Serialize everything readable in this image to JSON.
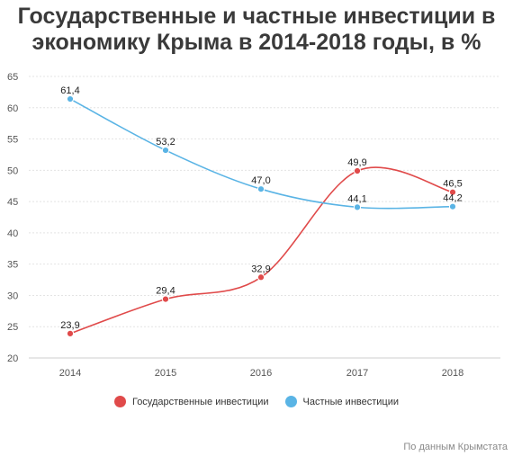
{
  "title": "Государственные и частные инвестиции в экономику Крыма в 2014-2018 годы, в %",
  "source": "По данным Крымстата",
  "chart_data": {
    "type": "line",
    "x": [
      "2014",
      "2015",
      "2016",
      "2017",
      "2018"
    ],
    "ylim": [
      20,
      65
    ],
    "yticks": [
      20,
      25,
      30,
      35,
      40,
      45,
      50,
      55,
      60,
      65
    ],
    "grid": true,
    "legend_position": "bottom-center",
    "series": [
      {
        "name": "Государственные инвестиции",
        "color": "#e04a4a",
        "values": [
          23.9,
          29.4,
          32.9,
          49.9,
          46.5
        ],
        "labels": [
          "23,9",
          "29,4",
          "32,9",
          "49,9",
          "46,5"
        ]
      },
      {
        "name": "Частные инвестиции",
        "color": "#5ab4e5",
        "values": [
          61.4,
          53.2,
          47.0,
          44.1,
          44.2
        ],
        "labels": [
          "61,4",
          "53,2",
          "47,0",
          "44,1",
          "44,2"
        ]
      }
    ]
  }
}
